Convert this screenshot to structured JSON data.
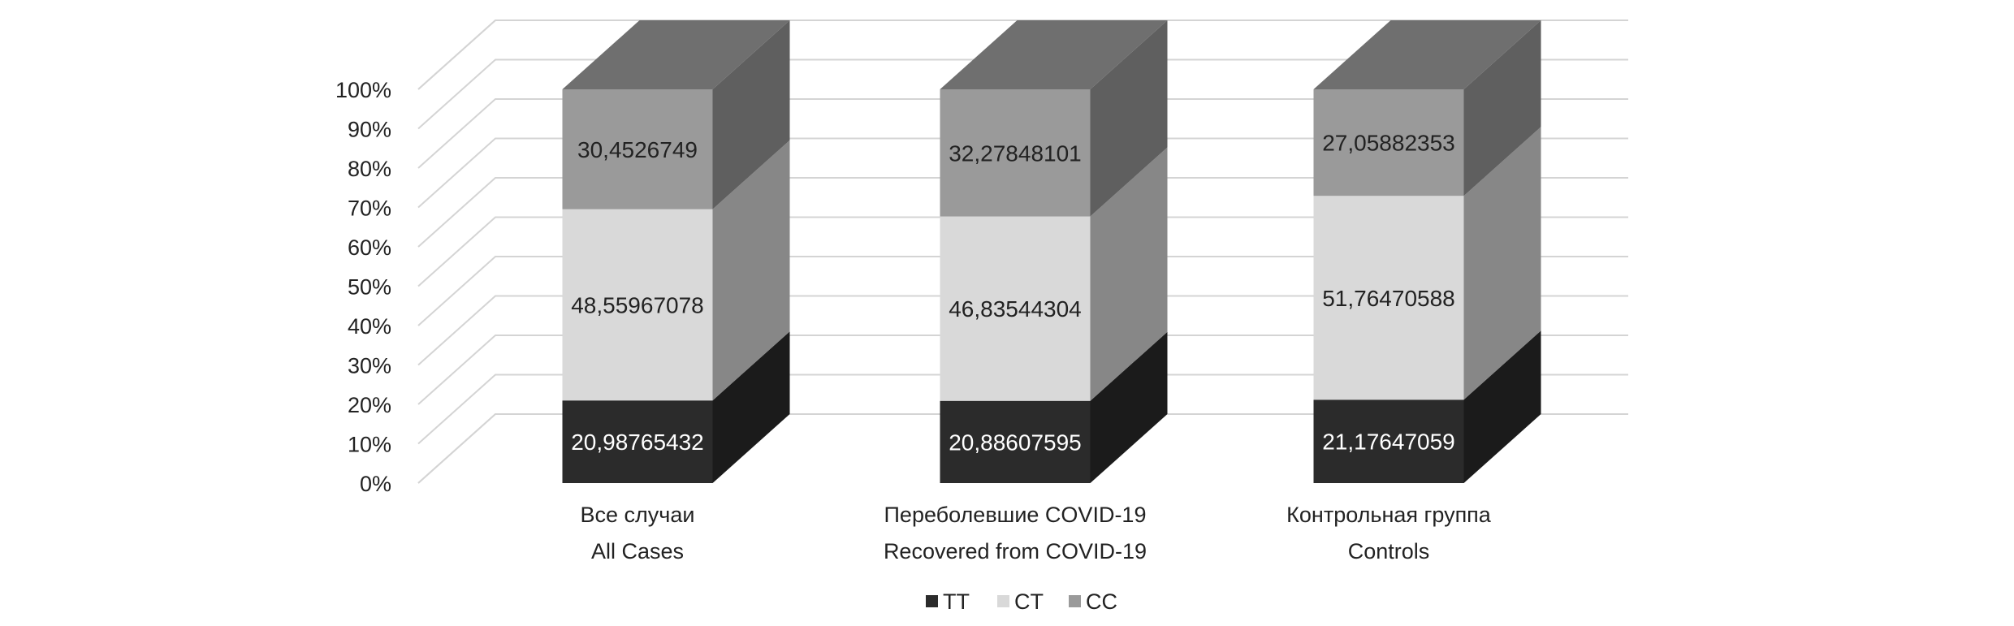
{
  "chart_data": {
    "type": "bar",
    "stacked": true,
    "percent_stacked": true,
    "three_d": true,
    "categories": [
      [
        "Все случаи",
        "All Cases"
      ],
      [
        "Переболевшие COVID-19",
        "Recovered from COVID-19"
      ],
      [
        "Контрольная группа",
        "Controls"
      ]
    ],
    "series": [
      {
        "name": "TT",
        "color": "#2b2b2b",
        "values": [
          20.98765432,
          20.88607595,
          21.17647059
        ],
        "labels": [
          "20,98765432",
          "20,88607595",
          "21,17647059"
        ]
      },
      {
        "name": "CT",
        "color": "#d9d9d9",
        "values": [
          48.55967078,
          46.83544304,
          51.76470588
        ],
        "labels": [
          "48,55967078",
          "46,83544304",
          "51,76470588"
        ]
      },
      {
        "name": "CC",
        "color": "#9a9a9a",
        "values": [
          30.4526749,
          32.27848101,
          27.05882353
        ],
        "labels": [
          "30,4526749",
          "32,27848101",
          "27,05882353"
        ]
      }
    ],
    "y_ticks": [
      "0%",
      "10%",
      "20%",
      "30%",
      "40%",
      "50%",
      "60%",
      "70%",
      "80%",
      "90%",
      "100%"
    ],
    "ylim": [
      0,
      100
    ],
    "grid": true,
    "legend_position": "bottom"
  }
}
